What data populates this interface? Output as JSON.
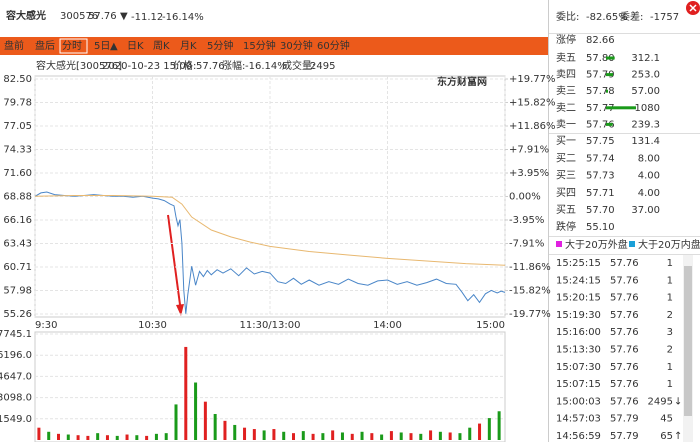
{
  "header": {
    "name": "容大感光",
    "code": "300576",
    "price": "57.76",
    "arrow": "▼",
    "change": "-11.12",
    "pct": "-16.14%"
  },
  "tabs": [
    "盘前",
    "盘后",
    "分时",
    "5日",
    "日K",
    "周K",
    "月K",
    "5分钟",
    "15分钟",
    "30分钟",
    "60分钟"
  ],
  "tab_arrow": "▲",
  "info": {
    "label": "容大感光[300576]",
    "datetime": "2020-10-23 15:00",
    "price_label": "价格:",
    "price": "57.76",
    "pct_label": "涨幅:",
    "pct": "-16.14%",
    "vol_label": "成交量:",
    "vol": "2495"
  },
  "watermark": "东方财富网",
  "chart_data": [
    {
      "type": "line",
      "xlim": [
        0,
        240
      ],
      "xticks": [
        {
          "value": 0,
          "label": "9:30"
        },
        {
          "value": 60,
          "label": "10:30"
        },
        {
          "value": 120,
          "label": "11:30/13:00"
        },
        {
          "value": 180,
          "label": "14:00"
        },
        {
          "value": 240,
          "label": "15:00"
        }
      ],
      "ylim": [
        55.26,
        82.5
      ],
      "yticks": [
        {
          "value": 82.5,
          "label": "82.50"
        },
        79.78,
        77.05,
        74.33,
        {
          "value": 71.6,
          "label": "71.60"
        },
        68.88,
        66.16,
        63.43,
        60.71,
        57.98,
        55.26
      ],
      "y2lim": [
        -19.77,
        19.77
      ],
      "y2ticks": [
        {
          "value": 19.77,
          "label": "+19.77%"
        },
        {
          "value": 15.82,
          "label": "+15.82%"
        },
        {
          "value": 11.86,
          "label": "+11.86%"
        },
        {
          "value": 7.91,
          "label": "+7.91%"
        },
        {
          "value": 3.95,
          "label": "+3.95%"
        },
        {
          "value": 0,
          "label": "0.00%"
        },
        {
          "value": -3.95,
          "label": "-3.95%"
        },
        {
          "value": -7.91,
          "label": "-7.91%"
        },
        {
          "value": -11.86,
          "label": "-11.86%"
        },
        {
          "value": -15.82,
          "label": "-15.82%"
        },
        {
          "value": -19.77,
          "label": "-19.77%"
        }
      ],
      "grid": true,
      "series": [
        {
          "color": "#4a86c8",
          "x": [
            0,
            3,
            6,
            10,
            15,
            20,
            25,
            30,
            35,
            40,
            45,
            50,
            55,
            60,
            63,
            66,
            69,
            71,
            72,
            73,
            74,
            75,
            76,
            77,
            78,
            80,
            82,
            84,
            86,
            88,
            90,
            93,
            96,
            100,
            104,
            108,
            112,
            116,
            120,
            124,
            128,
            132,
            136,
            140,
            145,
            150,
            155,
            160,
            165,
            170,
            175,
            180,
            185,
            190,
            195,
            200,
            205,
            210,
            215,
            218,
            221,
            224,
            227,
            230,
            233,
            236,
            238,
            240
          ],
          "values": [
            68.9,
            69.3,
            69.4,
            69.1,
            69.0,
            68.9,
            69.0,
            69.1,
            69.0,
            68.9,
            68.9,
            68.8,
            68.9,
            68.7,
            68.6,
            68.4,
            68.0,
            67.8,
            66.5,
            65.5,
            66.2,
            63.5,
            58.0,
            55.3,
            57.5,
            60.8,
            58.6,
            60.2,
            59.6,
            60.3,
            59.8,
            60.4,
            60.0,
            60.5,
            59.7,
            60.6,
            59.9,
            60.2,
            60.0,
            59.0,
            58.8,
            59.4,
            58.7,
            59.2,
            58.6,
            59.0,
            58.7,
            59.3,
            58.8,
            58.6,
            59.1,
            59.2,
            58.7,
            59.0,
            58.6,
            58.9,
            59.3,
            58.8,
            58.7,
            57.8,
            56.8,
            57.5,
            56.6,
            57.6,
            58.0,
            57.7,
            57.9,
            57.76
          ]
        },
        {
          "color": "#e8b870",
          "x": [
            0,
            20,
            40,
            60,
            70,
            75,
            80,
            90,
            100,
            110,
            120,
            140,
            160,
            180,
            200,
            220,
            240
          ],
          "values": [
            68.9,
            69.0,
            69.0,
            68.9,
            68.8,
            68.0,
            66.5,
            65.0,
            64.2,
            63.6,
            63.1,
            62.5,
            62.1,
            61.7,
            61.4,
            61.1,
            60.9
          ]
        }
      ]
    },
    {
      "type": "bar",
      "xlim": [
        0,
        240
      ],
      "ylim": [
        0,
        7745.1
      ],
      "yticks": [
        7745.1,
        {
          "value": 6196,
          "label": "6196.0"
        },
        {
          "value": 4647,
          "label": "4647.0"
        },
        {
          "value": 3098,
          "label": "3098.0"
        },
        {
          "value": 1549,
          "label": "1549.0"
        }
      ],
      "x": [
        2,
        7,
        12,
        17,
        22,
        27,
        32,
        37,
        42,
        47,
        52,
        57,
        62,
        67,
        72,
        77,
        82,
        87,
        92,
        97,
        102,
        107,
        112,
        117,
        122,
        127,
        132,
        137,
        142,
        147,
        152,
        157,
        162,
        167,
        172,
        177,
        182,
        187,
        192,
        197,
        202,
        207,
        212,
        217,
        222,
        227,
        232,
        237
      ],
      "values": [
        900,
        600,
        450,
        400,
        350,
        300,
        500,
        350,
        300,
        400,
        350,
        300,
        450,
        500,
        2600,
        6800,
        4200,
        2800,
        1900,
        1400,
        1100,
        900,
        800,
        700,
        800,
        600,
        500,
        650,
        450,
        500,
        700,
        550,
        450,
        600,
        500,
        400,
        650,
        550,
        500,
        450,
        700,
        600,
        550,
        500,
        900,
        1200,
        1600,
        2100
      ],
      "colors": [
        "#e02020",
        "#1a9a1a",
        "#e02020",
        "#1a9a1a",
        "#e02020",
        "#e02020",
        "#1a9a1a",
        "#e02020",
        "#1a9a1a",
        "#e02020",
        "#1a9a1a",
        "#e02020",
        "#1a9a1a",
        "#1a9a1a",
        "#1a9a1a",
        "#e02020",
        "#1a9a1a",
        "#e02020",
        "#1a9a1a",
        "#e02020",
        "#1a9a1a",
        "#e02020",
        "#e02020",
        "#1a9a1a",
        "#e02020",
        "#1a9a1a",
        "#e02020",
        "#1a9a1a",
        "#e02020",
        "#1a9a1a",
        "#e02020",
        "#1a9a1a",
        "#e02020",
        "#1a9a1a",
        "#e02020",
        "#1a9a1a",
        "#e02020",
        "#1a9a1a",
        "#e02020",
        "#1a9a1a",
        "#e02020",
        "#1a9a1a",
        "#e02020",
        "#1a9a1a",
        "#1a9a1a",
        "#e02020",
        "#1a9a1a",
        "#1a9a1a"
      ]
    }
  ],
  "book": {
    "ratio_label": "委比:",
    "ratio": "-82.65%",
    "diff_label": "委差:",
    "diff": "-1757",
    "limit_up": {
      "label": "涨停",
      "price": "82.66"
    },
    "asks": [
      {
        "label": "卖五",
        "price": "57.80",
        "vol": "312.1"
      },
      {
        "label": "卖四",
        "price": "57.79",
        "vol": "253.0"
      },
      {
        "label": "卖三",
        "price": "57.78",
        "vol": "57.00"
      },
      {
        "label": "卖二",
        "price": "57.77",
        "vol": "1080"
      },
      {
        "label": "卖一",
        "price": "57.76",
        "vol": "239.3"
      }
    ],
    "bids": [
      {
        "label": "买一",
        "price": "57.75",
        "vol": "131.4"
      },
      {
        "label": "买二",
        "price": "57.74",
        "vol": "8.00"
      },
      {
        "label": "买三",
        "price": "57.73",
        "vol": "4.00"
      },
      {
        "label": "买四",
        "price": "57.71",
        "vol": "4.00"
      },
      {
        "label": "买五",
        "price": "57.70",
        "vol": "37.00"
      }
    ],
    "limit_down": {
      "label": "跌停",
      "price": "55.10"
    }
  },
  "legend": [
    "大于20万外盘",
    "大于20万内盘"
  ],
  "trades": [
    {
      "time": "15:25:15",
      "price": "57.76",
      "vol": "1"
    },
    {
      "time": "15:24:15",
      "price": "57.76",
      "vol": "1"
    },
    {
      "time": "15:20:15",
      "price": "57.76",
      "vol": "1"
    },
    {
      "time": "15:19:30",
      "price": "57.76",
      "vol": "2"
    },
    {
      "time": "15:16:00",
      "price": "57.76",
      "vol": "3"
    },
    {
      "time": "15:13:30",
      "price": "57.76",
      "vol": "2"
    },
    {
      "time": "15:07:30",
      "price": "57.76",
      "vol": "1"
    },
    {
      "time": "15:07:15",
      "price": "57.76",
      "vol": "1"
    },
    {
      "time": "15:00:03",
      "price": "57.76",
      "vol": "2495",
      "arrow": "↓"
    },
    {
      "time": "14:57:03",
      "price": "57.79",
      "vol": "45"
    },
    {
      "time": "14:56:59",
      "price": "57.79",
      "vol": "65",
      "arrow": "↑"
    }
  ]
}
